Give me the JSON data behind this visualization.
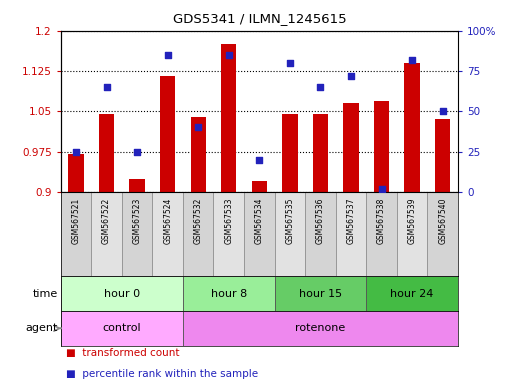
{
  "title": "GDS5341 / ILMN_1245615",
  "samples": [
    "GSM567521",
    "GSM567522",
    "GSM567523",
    "GSM567524",
    "GSM567532",
    "GSM567533",
    "GSM567534",
    "GSM567535",
    "GSM567536",
    "GSM567537",
    "GSM567538",
    "GSM567539",
    "GSM567540"
  ],
  "red_values": [
    0.97,
    1.045,
    0.925,
    1.115,
    1.04,
    1.175,
    0.92,
    1.045,
    1.045,
    1.065,
    1.07,
    1.14,
    1.035
  ],
  "blue_values": [
    25,
    65,
    25,
    85,
    40,
    85,
    20,
    80,
    65,
    72,
    2,
    82,
    50
  ],
  "ylim_left": [
    0.9,
    1.2
  ],
  "ylim_right": [
    0,
    100
  ],
  "yticks_left": [
    0.9,
    0.975,
    1.05,
    1.125,
    1.2
  ],
  "ytick_labels_left": [
    "0.9",
    "0.975",
    "1.05",
    "1.125",
    "1.2"
  ],
  "ytick_labels_right": [
    "0",
    "25",
    "50",
    "75",
    "100%"
  ],
  "groups": [
    {
      "label": "hour 0",
      "start": 0,
      "end": 4,
      "color": "#ccffcc"
    },
    {
      "label": "hour 8",
      "start": 4,
      "end": 7,
      "color": "#99ee99"
    },
    {
      "label": "hour 15",
      "start": 7,
      "end": 10,
      "color": "#66cc66"
    },
    {
      "label": "hour 24",
      "start": 10,
      "end": 13,
      "color": "#44bb44"
    }
  ],
  "agents": [
    {
      "label": "control",
      "start": 0,
      "end": 4,
      "color": "#ffaaff"
    },
    {
      "label": "rotenone",
      "start": 4,
      "end": 13,
      "color": "#ee88ee"
    }
  ],
  "bar_color": "#cc0000",
  "dot_color": "#2222bb",
  "bar_width": 0.5,
  "legend_items": [
    {
      "label": "transformed count",
      "color": "#cc0000"
    },
    {
      "label": "percentile rank within the sample",
      "color": "#2222bb"
    }
  ]
}
